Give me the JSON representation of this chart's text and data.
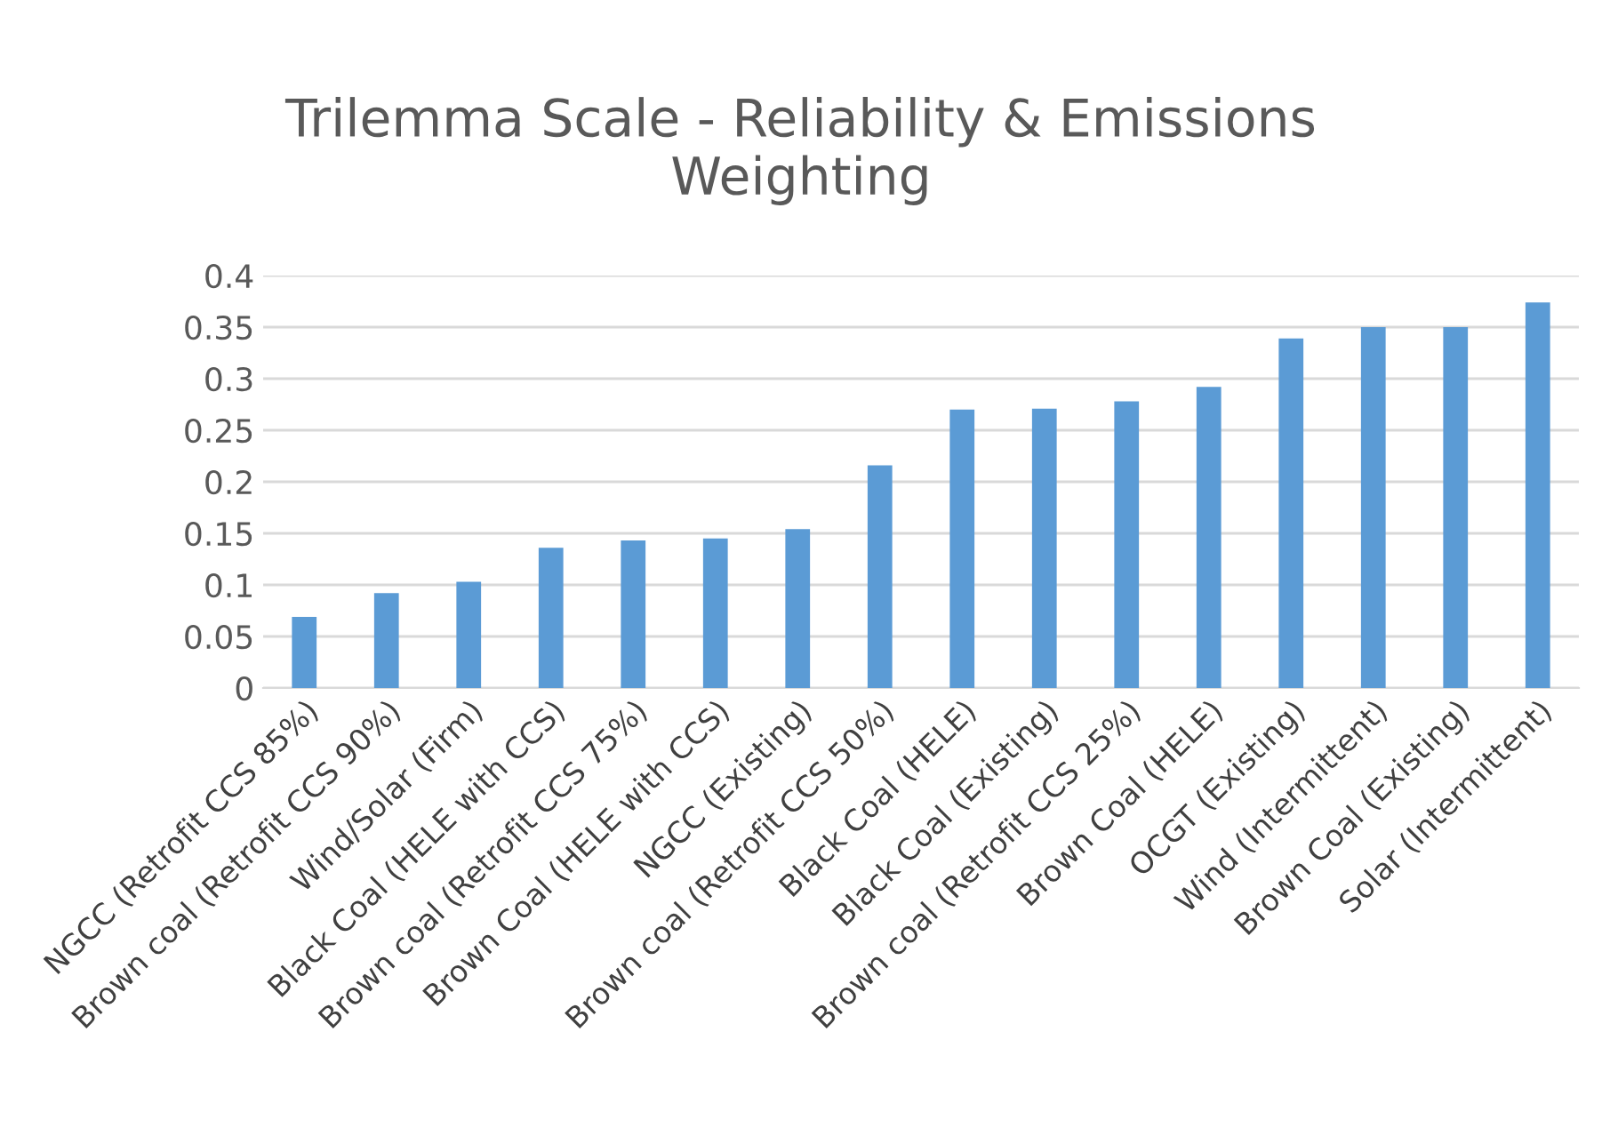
{
  "chart_data": {
    "type": "bar",
    "title": "Trilemma Scale - Reliability & Emissions\nWeighting",
    "categories": [
      "NGCC (Retrofit CCS 85%)",
      "Brown coal (Retrofit CCS 90%)",
      "Wind/Solar (Firm)",
      "Black Coal (HELE with CCS)",
      "Brown coal (Retrofit CCS 75%)",
      "Brown Coal (HELE with CCS)",
      "NGCC (Existing)",
      "Brown coal (Retrofit CCS 50%)",
      "Black Coal (HELE)",
      "Black Coal (Existing)",
      "Brown coal (Retrofit CCS 25%)",
      "Brown Coal (HELE)",
      "OCGT (Existing)",
      "Wind (Intermittent)",
      "Brown Coal (Existing)",
      "Solar (Intermittent)"
    ],
    "values": [
      0.069,
      0.092,
      0.103,
      0.136,
      0.143,
      0.145,
      0.154,
      0.216,
      0.27,
      0.271,
      0.278,
      0.292,
      0.339,
      0.35,
      0.35,
      0.374
    ],
    "color": "#5b9bd5",
    "ylim": [
      0,
      0.4
    ],
    "yticks": [
      {
        "value": 0,
        "label": "0"
      },
      {
        "value": 0.05,
        "label": "0.05"
      },
      {
        "value": 0.1,
        "label": "0.1"
      },
      {
        "value": 0.15,
        "label": "0.15"
      },
      {
        "value": 0.2,
        "label": "0.2"
      },
      {
        "value": 0.25,
        "label": "0.25"
      },
      {
        "value": 0.3,
        "label": "0.3"
      },
      {
        "value": 0.35,
        "label": "0.35"
      },
      {
        "value": 0.4,
        "label": "0.4"
      }
    ],
    "grid": "y",
    "legend": false
  }
}
